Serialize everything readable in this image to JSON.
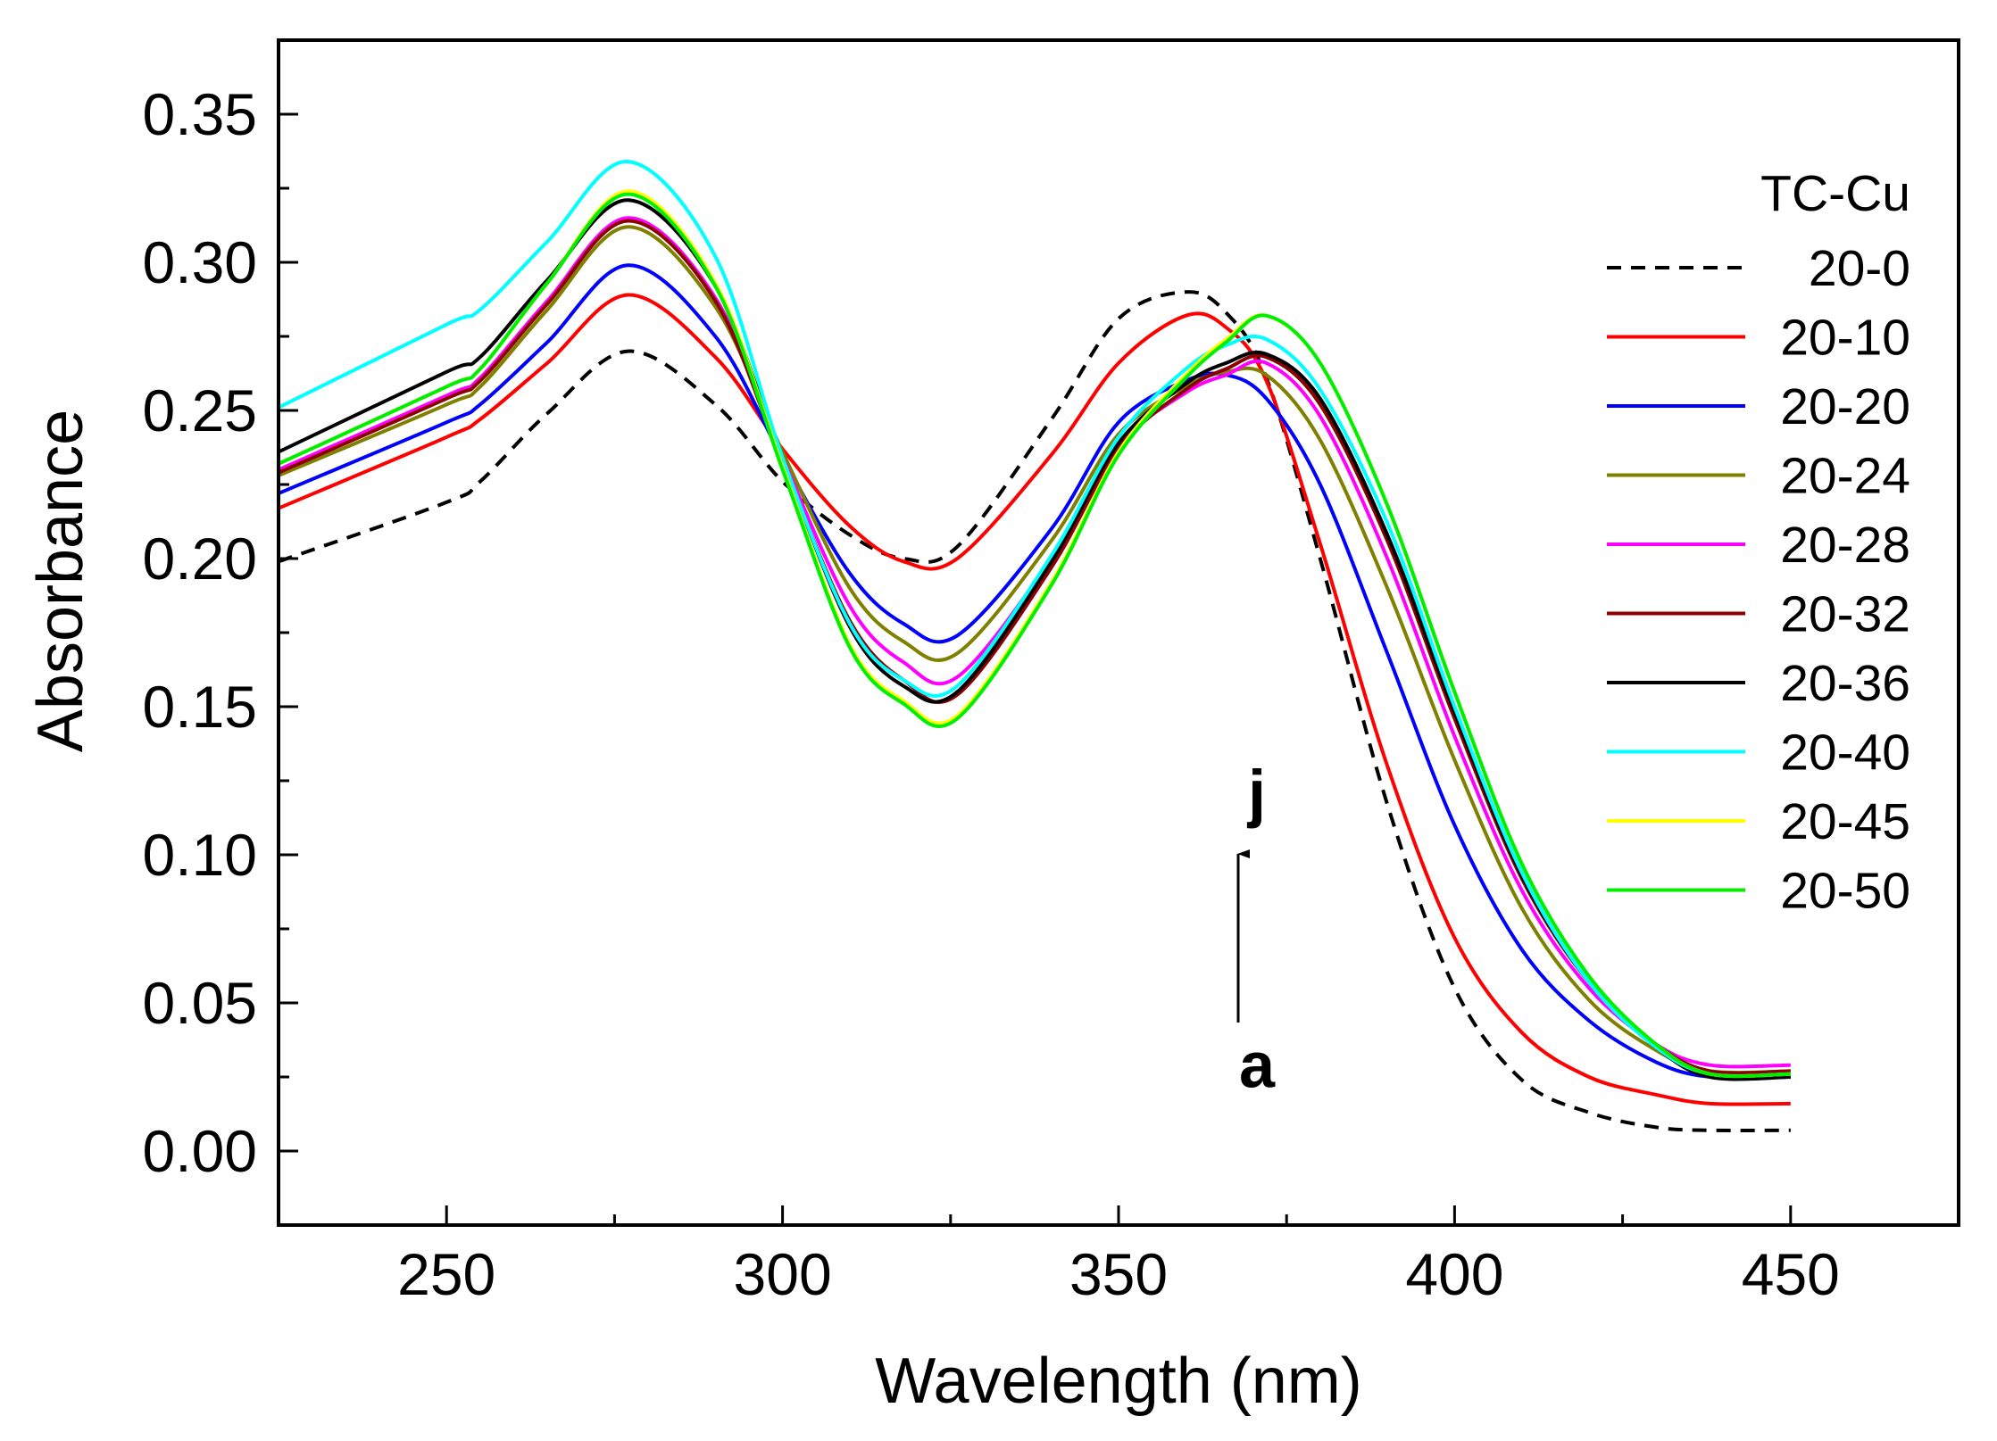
{
  "chart_data": {
    "type": "line",
    "title": "",
    "xlabel": "Wavelength (nm)",
    "ylabel": "Absorbance",
    "xlim": [
      225,
      475
    ],
    "ylim": [
      -0.025,
      0.375
    ],
    "xticks": [
      250,
      300,
      350,
      400,
      450
    ],
    "xtick_labels": [
      "250",
      "300",
      "350",
      "400",
      "450"
    ],
    "yticks": [
      0.0,
      0.05,
      0.1,
      0.15,
      0.2,
      0.25,
      0.3,
      0.35
    ],
    "ytick_labels": [
      "0.00",
      "0.05",
      "0.10",
      "0.15",
      "0.20",
      "0.25",
      "0.30",
      "0.35"
    ],
    "legend_title": "TC-Cu",
    "legend_position": "right",
    "grid": false,
    "x": [
      225,
      250,
      255,
      265,
      277,
      290,
      300,
      310,
      318,
      326,
      340,
      350,
      360,
      366,
      372,
      380,
      390,
      400,
      410,
      420,
      430,
      438,
      450
    ],
    "series": [
      {
        "name": "20-0",
        "color": "#000000",
        "dashed": true,
        "values": [
          0.199,
          0.219,
          0.226,
          0.249,
          0.27,
          0.252,
          0.226,
          0.208,
          0.2,
          0.204,
          0.247,
          0.281,
          0.29,
          0.283,
          0.261,
          0.2,
          0.117,
          0.055,
          0.024,
          0.013,
          0.008,
          0.007,
          0.007
        ]
      },
      {
        "name": "20-10",
        "color": "#ff0000",
        "dashed": false,
        "values": [
          0.217,
          0.241,
          0.247,
          0.266,
          0.289,
          0.268,
          0.237,
          0.211,
          0.199,
          0.2,
          0.235,
          0.266,
          0.282,
          0.278,
          0.26,
          0.205,
          0.13,
          0.072,
          0.04,
          0.025,
          0.019,
          0.016,
          0.016
        ]
      },
      {
        "name": "20-20",
        "color": "#0000ff",
        "dashed": false,
        "values": [
          0.222,
          0.246,
          0.252,
          0.273,
          0.299,
          0.275,
          0.234,
          0.195,
          0.178,
          0.174,
          0.21,
          0.246,
          0.26,
          0.262,
          0.254,
          0.225,
          0.168,
          0.11,
          0.068,
          0.044,
          0.03,
          0.025,
          0.025
        ]
      },
      {
        "name": "20-24",
        "color": "#808000",
        "dashed": false,
        "values": [
          0.228,
          0.252,
          0.258,
          0.284,
          0.312,
          0.285,
          0.236,
          0.19,
          0.172,
          0.168,
          0.206,
          0.242,
          0.258,
          0.263,
          0.262,
          0.24,
          0.19,
          0.132,
          0.082,
          0.051,
          0.034,
          0.027,
          0.027
        ]
      },
      {
        "name": "20-28",
        "color": "#ff00ff",
        "dashed": false,
        "values": [
          0.23,
          0.255,
          0.261,
          0.287,
          0.315,
          0.288,
          0.234,
          0.184,
          0.165,
          0.16,
          0.2,
          0.238,
          0.256,
          0.262,
          0.266,
          0.248,
          0.2,
          0.14,
          0.088,
          0.055,
          0.036,
          0.029,
          0.029
        ]
      },
      {
        "name": "20-32",
        "color": "#8b0000",
        "dashed": false,
        "values": [
          0.229,
          0.254,
          0.26,
          0.286,
          0.314,
          0.287,
          0.232,
          0.179,
          0.159,
          0.154,
          0.197,
          0.237,
          0.257,
          0.264,
          0.268,
          0.252,
          0.206,
          0.146,
          0.092,
          0.057,
          0.036,
          0.027,
          0.027
        ]
      },
      {
        "name": "20-36",
        "color": "#000000",
        "dashed": false,
        "values": [
          0.236,
          0.263,
          0.268,
          0.294,
          0.321,
          0.292,
          0.233,
          0.177,
          0.157,
          0.155,
          0.199,
          0.239,
          0.259,
          0.266,
          0.269,
          0.254,
          0.208,
          0.148,
          0.093,
          0.057,
          0.035,
          0.025,
          0.025
        ]
      },
      {
        "name": "20-40",
        "color": "#00ffff",
        "dashed": false,
        "values": [
          0.251,
          0.279,
          0.284,
          0.307,
          0.334,
          0.302,
          0.234,
          0.178,
          0.159,
          0.157,
          0.201,
          0.241,
          0.264,
          0.272,
          0.274,
          0.257,
          0.212,
          0.15,
          0.094,
          0.057,
          0.035,
          0.026,
          0.026
        ]
      },
      {
        "name": "20-45",
        "color": "#ffff00",
        "dashed": false,
        "values": [
          0.232,
          0.258,
          0.264,
          0.293,
          0.324,
          0.293,
          0.231,
          0.171,
          0.152,
          0.147,
          0.192,
          0.236,
          0.262,
          0.274,
          0.282,
          0.266,
          0.218,
          0.155,
          0.097,
          0.059,
          0.036,
          0.026,
          0.026
        ]
      },
      {
        "name": "20-50",
        "color": "#00ee00",
        "dashed": false,
        "values": [
          0.232,
          0.258,
          0.264,
          0.293,
          0.323,
          0.292,
          0.23,
          0.17,
          0.151,
          0.146,
          0.191,
          0.235,
          0.261,
          0.273,
          0.282,
          0.266,
          0.218,
          0.155,
          0.097,
          0.059,
          0.036,
          0.026,
          0.026
        ]
      }
    ],
    "annotations": [
      {
        "text": "j",
        "x": 369,
        "y": 0.121
      },
      {
        "text": "a",
        "x": 369,
        "y": 0.029
      }
    ]
  }
}
